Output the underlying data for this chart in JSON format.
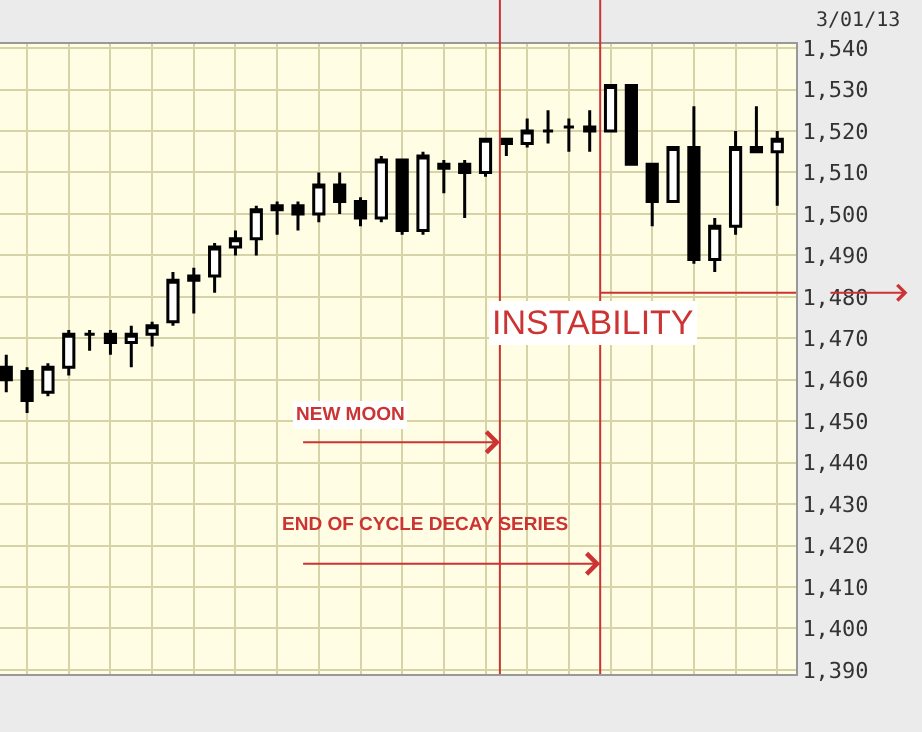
{
  "chart_data": {
    "type": "candlestick",
    "categories": [
      null,
      null,
      null,
      null,
      null,
      null,
      null,
      null,
      null,
      null,
      null,
      null,
      null,
      null,
      null,
      null,
      null,
      null,
      null,
      null,
      null,
      null,
      null,
      null,
      null,
      null,
      null,
      null,
      null,
      null,
      null,
      null,
      null,
      null,
      null,
      null,
      null,
      null
    ],
    "series": [
      {
        "color": "#000000",
        "ohlc": [
          [
            1463,
            1466,
            1457,
            1460
          ],
          [
            1462,
            1463,
            1452,
            1455
          ],
          [
            1457,
            1464,
            1456,
            1463
          ],
          [
            1463,
            1472,
            1461,
            1471
          ],
          [
            1471,
            1472,
            1467,
            1471
          ],
          [
            1471,
            1472,
            1466,
            1469
          ],
          [
            1469,
            1473,
            1463,
            1471
          ],
          [
            1471,
            1474,
            1468,
            1473
          ],
          [
            1474,
            1486,
            1473,
            1484
          ],
          [
            1484,
            1487,
            1476,
            1485
          ],
          [
            1485,
            1493,
            1481,
            1492
          ],
          [
            1492,
            1496,
            1490,
            1494
          ],
          [
            1494,
            1502,
            1490,
            1501
          ],
          [
            1501,
            1503,
            1495,
            1502
          ],
          [
            1502,
            1503,
            1496,
            1500
          ],
          [
            1500,
            1510,
            1498,
            1507
          ],
          [
            1507,
            1510,
            1500,
            1503
          ],
          [
            1503,
            1504,
            1497,
            1499
          ],
          [
            1499,
            1514,
            1498,
            1513
          ],
          [
            1513,
            1513,
            1495,
            1496
          ],
          [
            1496,
            1515,
            1495,
            1514
          ],
          [
            1512,
            1513,
            1505,
            1511
          ],
          [
            1512,
            1513,
            1499,
            1510
          ],
          [
            1510,
            1518,
            1509,
            1518
          ],
          [
            1518,
            1518,
            1514,
            1517
          ],
          [
            1517,
            1523,
            1516,
            1520
          ],
          [
            1520,
            1525,
            1517,
            1520
          ],
          [
            1521,
            1523,
            1515,
            1521
          ],
          [
            1521,
            1525,
            1515,
            1520
          ],
          [
            1520,
            1531,
            1520,
            1531
          ],
          [
            1531,
            1531,
            1512,
            1512
          ],
          [
            1512,
            1512,
            1497,
            1503
          ],
          [
            1503,
            1516,
            1503,
            1516
          ],
          [
            1516,
            1526,
            1488,
            1489
          ],
          [
            1489,
            1499,
            1486,
            1497
          ],
          [
            1497,
            1520,
            1495,
            1516
          ],
          [
            1516,
            1526,
            1515,
            1515
          ],
          [
            1515,
            1520,
            1502,
            1518
          ]
        ]
      }
    ],
    "ylim": [
      1389,
      1541
    ],
    "yticks": [
      {
        "value": 1390,
        "label": "1,390"
      },
      {
        "value": 1400,
        "label": "1,400"
      },
      {
        "value": 1410,
        "label": "1,410"
      },
      {
        "value": 1420,
        "label": "1,420"
      },
      {
        "value": 1430,
        "label": "1,430"
      },
      {
        "value": 1440,
        "label": "1,440"
      },
      {
        "value": 1450,
        "label": "1,450"
      },
      {
        "value": 1460,
        "label": "1,460"
      },
      {
        "value": 1470,
        "label": "1,470"
      },
      {
        "value": 1480,
        "label": "1,480"
      },
      {
        "value": 1490,
        "label": "1,490"
      },
      {
        "value": 1500,
        "label": "1,500"
      },
      {
        "value": 1510,
        "label": "1,510"
      },
      {
        "value": 1520,
        "label": "1,520"
      },
      {
        "value": 1530,
        "label": "1,530"
      },
      {
        "value": 1540,
        "label": "1,540"
      }
    ],
    "grid": true,
    "ref_lines": [
      {
        "axis": "y",
        "value": 1481,
        "label": "INSTABILITY",
        "color": "#cc3333"
      }
    ],
    "annotations": [
      "NEW MOON",
      "END OF CYCLE DECAY SERIES",
      "3/01/13"
    ]
  }
}
